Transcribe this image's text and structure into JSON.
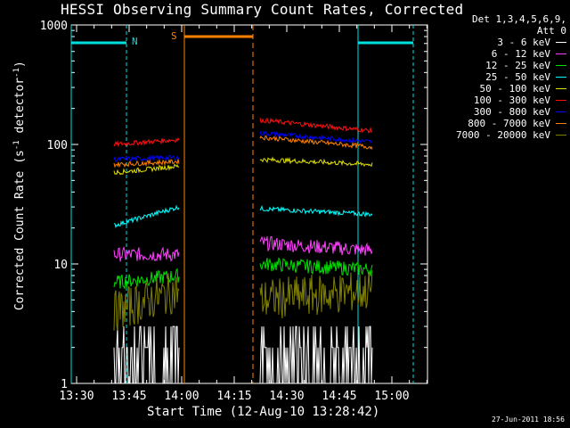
{
  "chart_data": {
    "type": "line",
    "title": "HESSI Observing Summary Count Rates, Corrected",
    "xlabel": "Start Time (12-Aug-10 13:28:42)",
    "ylabel": "Corrected Count Rate (s-1 detector-1)",
    "ylabel_parts": {
      "main": "Corrected Count Rate (s",
      "sup1": "-1",
      "mid": " detector",
      "sup2": "-1",
      "end": ")"
    },
    "yscale": "log",
    "ylim": [
      1,
      1000
    ],
    "xlim_minutes": [
      13.5,
      15.1
    ],
    "x_ticks": [
      "13:30",
      "13:45",
      "14:00",
      "14:15",
      "14:30",
      "14:45",
      "15:00"
    ],
    "y_ticks": [
      "1",
      "10",
      "100",
      "1000"
    ],
    "annotations": {
      "night_label": "N",
      "saa_label": "S",
      "timestamp": "27-Jun-2011 18:56"
    },
    "legend": {
      "header_line1": "Det 1,3,4,5,6,9,",
      "header_line2": "Att 0",
      "placement": "right"
    },
    "series": [
      {
        "name": "3 - 6 keV",
        "color": "#ffffff",
        "values_segment1": [
          1,
          3
        ],
        "values_segment2": [
          1,
          3
        ]
      },
      {
        "name": "6 - 12 keV",
        "color": "#ff40ff",
        "values_segment1": [
          12,
          12
        ],
        "values_segment2": [
          15,
          13
        ]
      },
      {
        "name": "12 - 25 keV",
        "color": "#00e000",
        "values_segment1": [
          7,
          8
        ],
        "values_segment2": [
          10,
          9
        ]
      },
      {
        "name": "25 - 50 keV",
        "color": "#00ffff",
        "values_segment1": [
          21,
          30
        ],
        "values_segment2": [
          29,
          26
        ]
      },
      {
        "name": "50 - 100 keV",
        "color": "#e0e000",
        "values_segment1": [
          58,
          66
        ],
        "values_segment2": [
          75,
          68
        ]
      },
      {
        "name": "100 - 300 keV",
        "color": "#ff1010",
        "values_segment1": [
          100,
          110
        ],
        "values_segment2": [
          160,
          130
        ]
      },
      {
        "name": "300 - 800 keV",
        "color": "#0000ff",
        "values_segment1": [
          75,
          78
        ],
        "values_segment2": [
          125,
          105
        ]
      },
      {
        "name": "800 - 7000 keV",
        "color": "#ff8000",
        "values_segment1": [
          68,
          72
        ],
        "values_segment2": [
          115,
          95
        ]
      },
      {
        "name": "7000 - 20000 keV",
        "color": "#808000",
        "values_segment1": [
          4,
          6
        ],
        "values_segment2": [
          5,
          6
        ]
      }
    ]
  }
}
